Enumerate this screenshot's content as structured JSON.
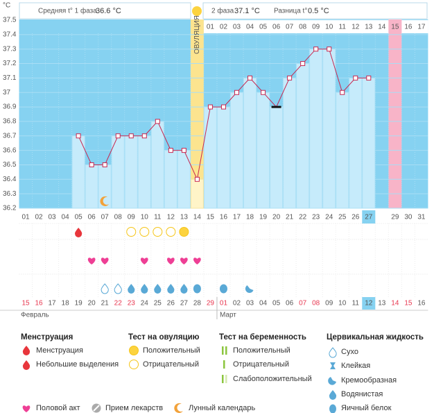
{
  "chart_data": {
    "type": "line",
    "y_unit": "°C",
    "ylim": [
      36.2,
      37.5
    ],
    "yticks": [
      37.5,
      37.4,
      37.3,
      37.2,
      37.1,
      37,
      36.9,
      36.8,
      36.7,
      36.6,
      36.5,
      36.4,
      36.3,
      36.2
    ],
    "grid": true,
    "line_color": "#c8264f",
    "bar_color": "#c6ebfb",
    "phase1_label": "Средняя t° 1 фаза",
    "phase1_value": "36.6 °C",
    "phase2_label": "2 фаза",
    "phase2_value": "37.1 °C",
    "diff_label": "Разница t°",
    "diff_value": "0.5 °C",
    "ovulation_label": "ОВУЛЯЦИЯ",
    "phase2_days": [
      "01",
      "02",
      "03",
      "04",
      "05",
      "06",
      "07",
      "08",
      "09",
      "10",
      "11",
      "12",
      "13",
      "14",
      "15",
      "16",
      "17"
    ],
    "categories": [
      "01",
      "02",
      "03",
      "04",
      "05",
      "06",
      "07",
      "08",
      "09",
      "10",
      "11",
      "12",
      "13",
      "14",
      "15",
      "16",
      "17",
      "18",
      "19",
      "20",
      "21",
      "22",
      "23",
      "24",
      "25",
      "26",
      "27",
      null,
      "29",
      "30",
      "31"
    ],
    "values": [
      null,
      null,
      null,
      null,
      36.7,
      36.5,
      36.5,
      36.7,
      36.7,
      36.7,
      36.8,
      36.6,
      36.6,
      36.4,
      36.9,
      36.9,
      37,
      37.1,
      37,
      36.9,
      37.1,
      37.2,
      37.3,
      37.3,
      37,
      37.1,
      37.1,
      null,
      null,
      null,
      null
    ],
    "dates": [
      "15",
      "16",
      "17",
      "18",
      "19",
      "20",
      "21",
      "22",
      "23",
      "24",
      "25",
      "26",
      "27",
      "28",
      "29",
      "01",
      "02",
      "03",
      "04",
      "05",
      "06",
      "07",
      "08",
      "09",
      "10",
      "11",
      "12",
      "13",
      "14",
      "15",
      "16"
    ],
    "months": [
      "Февраль",
      "Март"
    ]
  },
  "legend": {
    "menstruation": {
      "title": "Менструация",
      "items": [
        "Менструация",
        "Небольшие выделения"
      ]
    },
    "ovulation_test": {
      "title": "Тест на овуляцию",
      "items": [
        "Положительный",
        "Отрицательный"
      ]
    },
    "pregnancy_test": {
      "title": "Тест на беременность",
      "items": [
        "Положительный",
        "Отрицательный",
        "Слабоположительный"
      ]
    },
    "fluid": {
      "title": "Цервикальная жидкость",
      "items": [
        "Сухо",
        "Клейкая",
        "Кремообразная",
        "Водянистая",
        "Яичный белок"
      ]
    },
    "other": [
      "Половой акт",
      "Прием лекарств",
      "Лунный календарь"
    ]
  }
}
